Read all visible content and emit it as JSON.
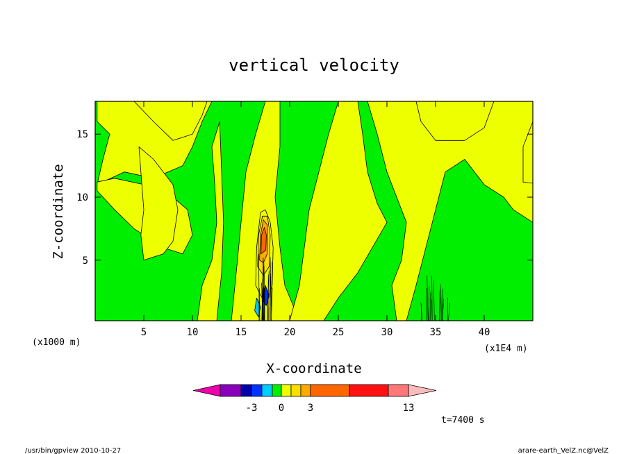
{
  "footer": {
    "left": "/usr/bin/gpview   2010-10-27",
    "right": "arare-earth_VelZ.nc@VelZ"
  },
  "chart_data": {
    "type": "heatmap",
    "title": "vertical velocity",
    "xlabel": "X-coordinate",
    "ylabel": "Z-coordinate",
    "x_unit_label": "(x1000 m)",
    "x_scale_label": "(x1E4 m)",
    "time_label": "t=7400 s",
    "xlim": [
      0,
      45
    ],
    "ylim": [
      0.2,
      17.6
    ],
    "x_ticks": [
      5,
      10,
      15,
      20,
      25,
      30,
      35,
      40
    ],
    "x_tick_labels": [
      "5",
      "10",
      "15",
      "20",
      "25",
      "30",
      "35",
      "40"
    ],
    "y_ticks": [
      5,
      10,
      15
    ],
    "y_tick_labels": [
      "5",
      "10",
      "15"
    ],
    "background_color": "#00ee00",
    "colorbar": {
      "colors": [
        "#ee00aa",
        "#8800bb",
        "#0000aa",
        "#0033ff",
        "#00ccff",
        "#00ee00",
        "#eeff00",
        "#ffdd00",
        "#ffaa00",
        "#ff6600",
        "#ff1111",
        "#ff7777",
        "#ffbbbb"
      ],
      "tick_labels": [
        "-3",
        "0",
        "3",
        "13"
      ]
    },
    "regions": [
      {
        "color": "#eeff00",
        "points": [
          [
            0.2,
            11
          ],
          [
            3,
            12
          ],
          [
            6,
            11.5
          ],
          [
            9,
            12.5
          ],
          [
            10,
            14
          ],
          [
            11,
            16
          ],
          [
            12,
            17.6
          ],
          [
            0.2,
            17.6
          ],
          [
            0.2,
            16
          ],
          [
            1.5,
            15
          ],
          [
            0.8,
            13
          ]
        ]
      },
      {
        "color": "#eeff00",
        "points": [
          [
            0.2,
            10.5
          ],
          [
            2,
            9
          ],
          [
            4,
            7.5
          ],
          [
            7,
            6
          ],
          [
            9,
            5.5
          ],
          [
            10,
            7
          ],
          [
            9.5,
            9
          ],
          [
            8,
            10
          ],
          [
            5,
            11
          ],
          [
            2,
            11.5
          ],
          [
            0.2,
            11.2
          ]
        ]
      },
      {
        "color": "#eeff00",
        "points": [
          [
            4,
            17.6
          ],
          [
            6,
            16
          ],
          [
            8,
            14.5
          ],
          [
            10,
            15
          ],
          [
            11,
            16.5
          ],
          [
            11.5,
            17.6
          ]
        ]
      },
      {
        "color": "#eeff00",
        "points": [
          [
            4.5,
            14
          ],
          [
            6,
            13
          ],
          [
            7,
            12
          ],
          [
            8,
            11
          ],
          [
            8.5,
            9
          ],
          [
            8,
            6.5
          ],
          [
            7,
            5.5
          ],
          [
            5,
            5
          ],
          [
            4.7,
            7
          ],
          [
            5,
            9
          ],
          [
            4.8,
            11
          ]
        ]
      },
      {
        "color": "#eeff00",
        "points": [
          [
            10.5,
            0.2
          ],
          [
            11,
            3
          ],
          [
            12,
            5
          ],
          [
            12.5,
            8
          ],
          [
            12.3,
            11
          ],
          [
            12,
            14
          ],
          [
            12.8,
            16
          ],
          [
            13,
            12
          ],
          [
            13.2,
            8
          ],
          [
            13,
            4
          ],
          [
            12.5,
            0.2
          ]
        ]
      },
      {
        "color": "#eeff00",
        "points": [
          [
            14,
            0.2
          ],
          [
            14.5,
            4
          ],
          [
            15,
            8
          ],
          [
            15.5,
            12
          ],
          [
            16.5,
            15
          ],
          [
            17.5,
            17.6
          ],
          [
            19,
            17.6
          ],
          [
            19,
            14
          ],
          [
            18.5,
            10
          ],
          [
            19,
            6
          ],
          [
            19.5,
            3
          ],
          [
            21,
            0.2
          ]
        ]
      },
      {
        "color": "#eeff00",
        "points": [
          [
            20,
            0.2
          ],
          [
            21,
            3
          ],
          [
            21.5,
            6
          ],
          [
            22,
            9
          ],
          [
            23,
            12
          ],
          [
            24,
            15
          ],
          [
            25,
            17.6
          ],
          [
            27,
            17.6
          ],
          [
            27.5,
            15
          ],
          [
            28,
            12
          ],
          [
            29,
            9.5
          ],
          [
            30,
            8
          ],
          [
            28.5,
            6
          ],
          [
            27,
            4
          ],
          [
            25,
            2
          ],
          [
            23.5,
            0.2
          ]
        ]
      },
      {
        "color": "#eeff00",
        "points": [
          [
            28,
            17.6
          ],
          [
            29,
            15
          ],
          [
            30,
            12
          ],
          [
            31,
            10
          ],
          [
            32,
            8
          ],
          [
            31.5,
            5
          ],
          [
            30.5,
            3
          ],
          [
            31,
            0.2
          ],
          [
            32,
            0.2
          ],
          [
            33,
            3
          ],
          [
            34,
            6
          ],
          [
            35,
            9
          ],
          [
            36,
            12
          ],
          [
            38,
            13
          ],
          [
            40,
            11
          ],
          [
            42,
            10
          ],
          [
            43,
            9
          ],
          [
            45,
            8
          ],
          [
            45,
            17.6
          ]
        ]
      },
      {
        "color": "#eeff00",
        "points": [
          [
            33,
            17.6
          ],
          [
            33.5,
            16
          ],
          [
            35,
            14.5
          ],
          [
            38,
            14.5
          ],
          [
            40,
            15.5
          ],
          [
            41,
            17.6
          ]
        ]
      },
      {
        "color": "#eeff00",
        "points": [
          [
            44,
            11.2
          ],
          [
            45,
            11.1
          ],
          [
            45,
            16
          ],
          [
            44,
            14
          ]
        ]
      },
      {
        "color": "#eeff00",
        "points": [
          [
            16.5,
            3
          ],
          [
            16.6,
            6
          ],
          [
            17,
            8.8
          ],
          [
            17.5,
            9
          ],
          [
            18,
            8
          ],
          [
            18.3,
            6
          ],
          [
            18.2,
            3
          ],
          [
            17.5,
            1.5
          ]
        ]
      },
      {
        "color": "#ffdd00",
        "points": [
          [
            16.7,
            4.5
          ],
          [
            16.8,
            7
          ],
          [
            17.2,
            8.5
          ],
          [
            17.7,
            8.5
          ],
          [
            18,
            7
          ],
          [
            17.9,
            4.5
          ],
          [
            17.3,
            3.8
          ]
        ]
      },
      {
        "color": "#ffaa00",
        "points": [
          [
            16.9,
            5
          ],
          [
            17,
            7
          ],
          [
            17.3,
            8.2
          ],
          [
            17.7,
            7.8
          ],
          [
            17.7,
            5.5
          ],
          [
            17.3,
            4.8
          ]
        ]
      },
      {
        "color": "#ff6600",
        "points": [
          [
            17.05,
            5.5
          ],
          [
            17.1,
            7
          ],
          [
            17.4,
            7.6
          ],
          [
            17.6,
            7
          ],
          [
            17.55,
            5.8
          ]
        ]
      },
      {
        "color": "#00ccff",
        "points": [
          [
            16.4,
            1
          ],
          [
            16.6,
            2
          ],
          [
            17,
            1.3
          ],
          [
            16.8,
            0.5
          ]
        ]
      },
      {
        "color": "#0033ff",
        "points": [
          [
            17.2,
            1.8
          ],
          [
            17.5,
            3
          ],
          [
            17.9,
            2.2
          ],
          [
            17.6,
            1.4
          ]
        ]
      }
    ]
  }
}
